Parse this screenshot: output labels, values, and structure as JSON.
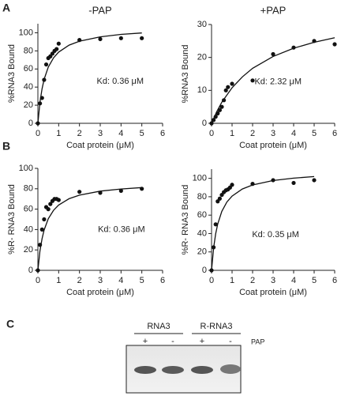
{
  "chart_data": [
    {
      "type": "scatter",
      "title": "-PAP",
      "x_label": "Coat protein (μM)",
      "y_label": "%RNA3 Bound",
      "annotation": "Kd: 0.36 μM",
      "xlim": [
        0,
        6
      ],
      "xticks": [
        0,
        1,
        2,
        3,
        4,
        5,
        6
      ],
      "ylim": [
        0,
        110
      ],
      "yticks": [
        0,
        20,
        40,
        60,
        80,
        100
      ],
      "color": "#111111",
      "points": {
        "x": [
          0,
          0.1,
          0.2,
          0.3,
          0.4,
          0.5,
          0.6,
          0.7,
          0.8,
          0.9,
          1,
          2,
          3,
          4,
          5
        ],
        "values": [
          0,
          22,
          28,
          48,
          65,
          72,
          74,
          77,
          80,
          82,
          88,
          92,
          93,
          94,
          94
        ]
      },
      "fit": {
        "x": [
          0,
          0.1,
          0.2,
          0.3,
          0.5,
          0.75,
          1,
          1.5,
          2,
          3,
          4,
          5
        ],
        "values": [
          0,
          23.3,
          38.2,
          48.6,
          62.2,
          72.3,
          78.7,
          86.3,
          90.7,
          95.5,
          98.2,
          99.8
        ]
      }
    },
    {
      "type": "scatter",
      "title": "+PAP",
      "x_label": "Coat protein (μM)",
      "y_label": "%RNA3 Bound",
      "annotation": "Kd: 2.32 μM",
      "xlim": [
        0,
        6
      ],
      "xticks": [
        0,
        1,
        2,
        3,
        4,
        5,
        6
      ],
      "ylim": [
        0,
        30
      ],
      "yticks": [
        0,
        10,
        20,
        30
      ],
      "color": "#111111",
      "points": {
        "x": [
          0,
          0.1,
          0.2,
          0.3,
          0.4,
          0.5,
          0.6,
          0.7,
          0.8,
          1,
          2,
          3,
          4,
          5,
          6
        ],
        "values": [
          0,
          1,
          2,
          3,
          4,
          5,
          7,
          10,
          11,
          12,
          13,
          21,
          23,
          25,
          24
        ]
      },
      "fit": {
        "x": [
          0,
          0.25,
          0.5,
          1,
          1.5,
          2,
          3,
          4,
          5,
          6
        ],
        "values": [
          0,
          3.5,
          6.4,
          10.8,
          14.1,
          16.7,
          20.3,
          22.8,
          24.6,
          26.0
        ]
      }
    },
    {
      "type": "scatter",
      "x_label": "Coat protein (μM)",
      "y_label": "%R- RNA3 Bound",
      "annotation": "Kd: 0.36 μM",
      "xlim": [
        0,
        6
      ],
      "xticks": [
        0,
        1,
        2,
        3,
        4,
        5,
        6
      ],
      "ylim": [
        0,
        100
      ],
      "yticks": [
        0,
        20,
        40,
        60,
        80,
        100
      ],
      "color": "#111111",
      "points": {
        "x": [
          0,
          0.1,
          0.2,
          0.3,
          0.4,
          0.5,
          0.6,
          0.7,
          0.8,
          0.9,
          1,
          2,
          3,
          4,
          5
        ],
        "values": [
          0,
          25,
          40,
          50,
          62,
          60,
          65,
          68,
          70,
          70,
          69,
          77,
          76,
          78,
          80
        ]
      },
      "fit": {
        "x": [
          0,
          0.1,
          0.2,
          0.3,
          0.5,
          0.75,
          1,
          1.5,
          2,
          3,
          4,
          5
        ],
        "values": [
          0,
          18.9,
          31.1,
          39.5,
          50.6,
          58.8,
          64,
          70.2,
          73.7,
          77.7,
          79.8,
          81.2
        ]
      }
    },
    {
      "type": "scatter",
      "x_label": "Coat protein (μM)",
      "y_label": "%R- RNA3 Bound",
      "annotation": "Kd: 0.35 μM",
      "xlim": [
        0,
        6
      ],
      "xticks": [
        0,
        1,
        2,
        3,
        4,
        5,
        6
      ],
      "ylim": [
        0,
        110
      ],
      "yticks": [
        0,
        20,
        40,
        60,
        80,
        100
      ],
      "color": "#111111",
      "points": {
        "x": [
          0,
          0.1,
          0.2,
          0.3,
          0.4,
          0.5,
          0.6,
          0.7,
          0.8,
          0.9,
          1,
          2,
          3,
          4,
          5
        ],
        "values": [
          0,
          25,
          50,
          75,
          78,
          82,
          85,
          87,
          88,
          90,
          93,
          94,
          98,
          95,
          98
        ]
      },
      "fit": {
        "x": [
          0,
          0.1,
          0.2,
          0.3,
          0.5,
          0.75,
          1,
          1.5,
          2,
          3,
          4,
          5
        ],
        "values": [
          0,
          24.2,
          39.6,
          50.3,
          64.1,
          74.3,
          80.7,
          88.4,
          92.8,
          97.6,
          100.2,
          101.9
        ]
      }
    }
  ],
  "panel_labels": [
    "A",
    "B",
    "C"
  ],
  "gel": {
    "groups": [
      "RNA3",
      "R-RNA3"
    ],
    "lanes": [
      "+",
      "-",
      "+",
      "-"
    ],
    "lane_label": "PAP"
  }
}
